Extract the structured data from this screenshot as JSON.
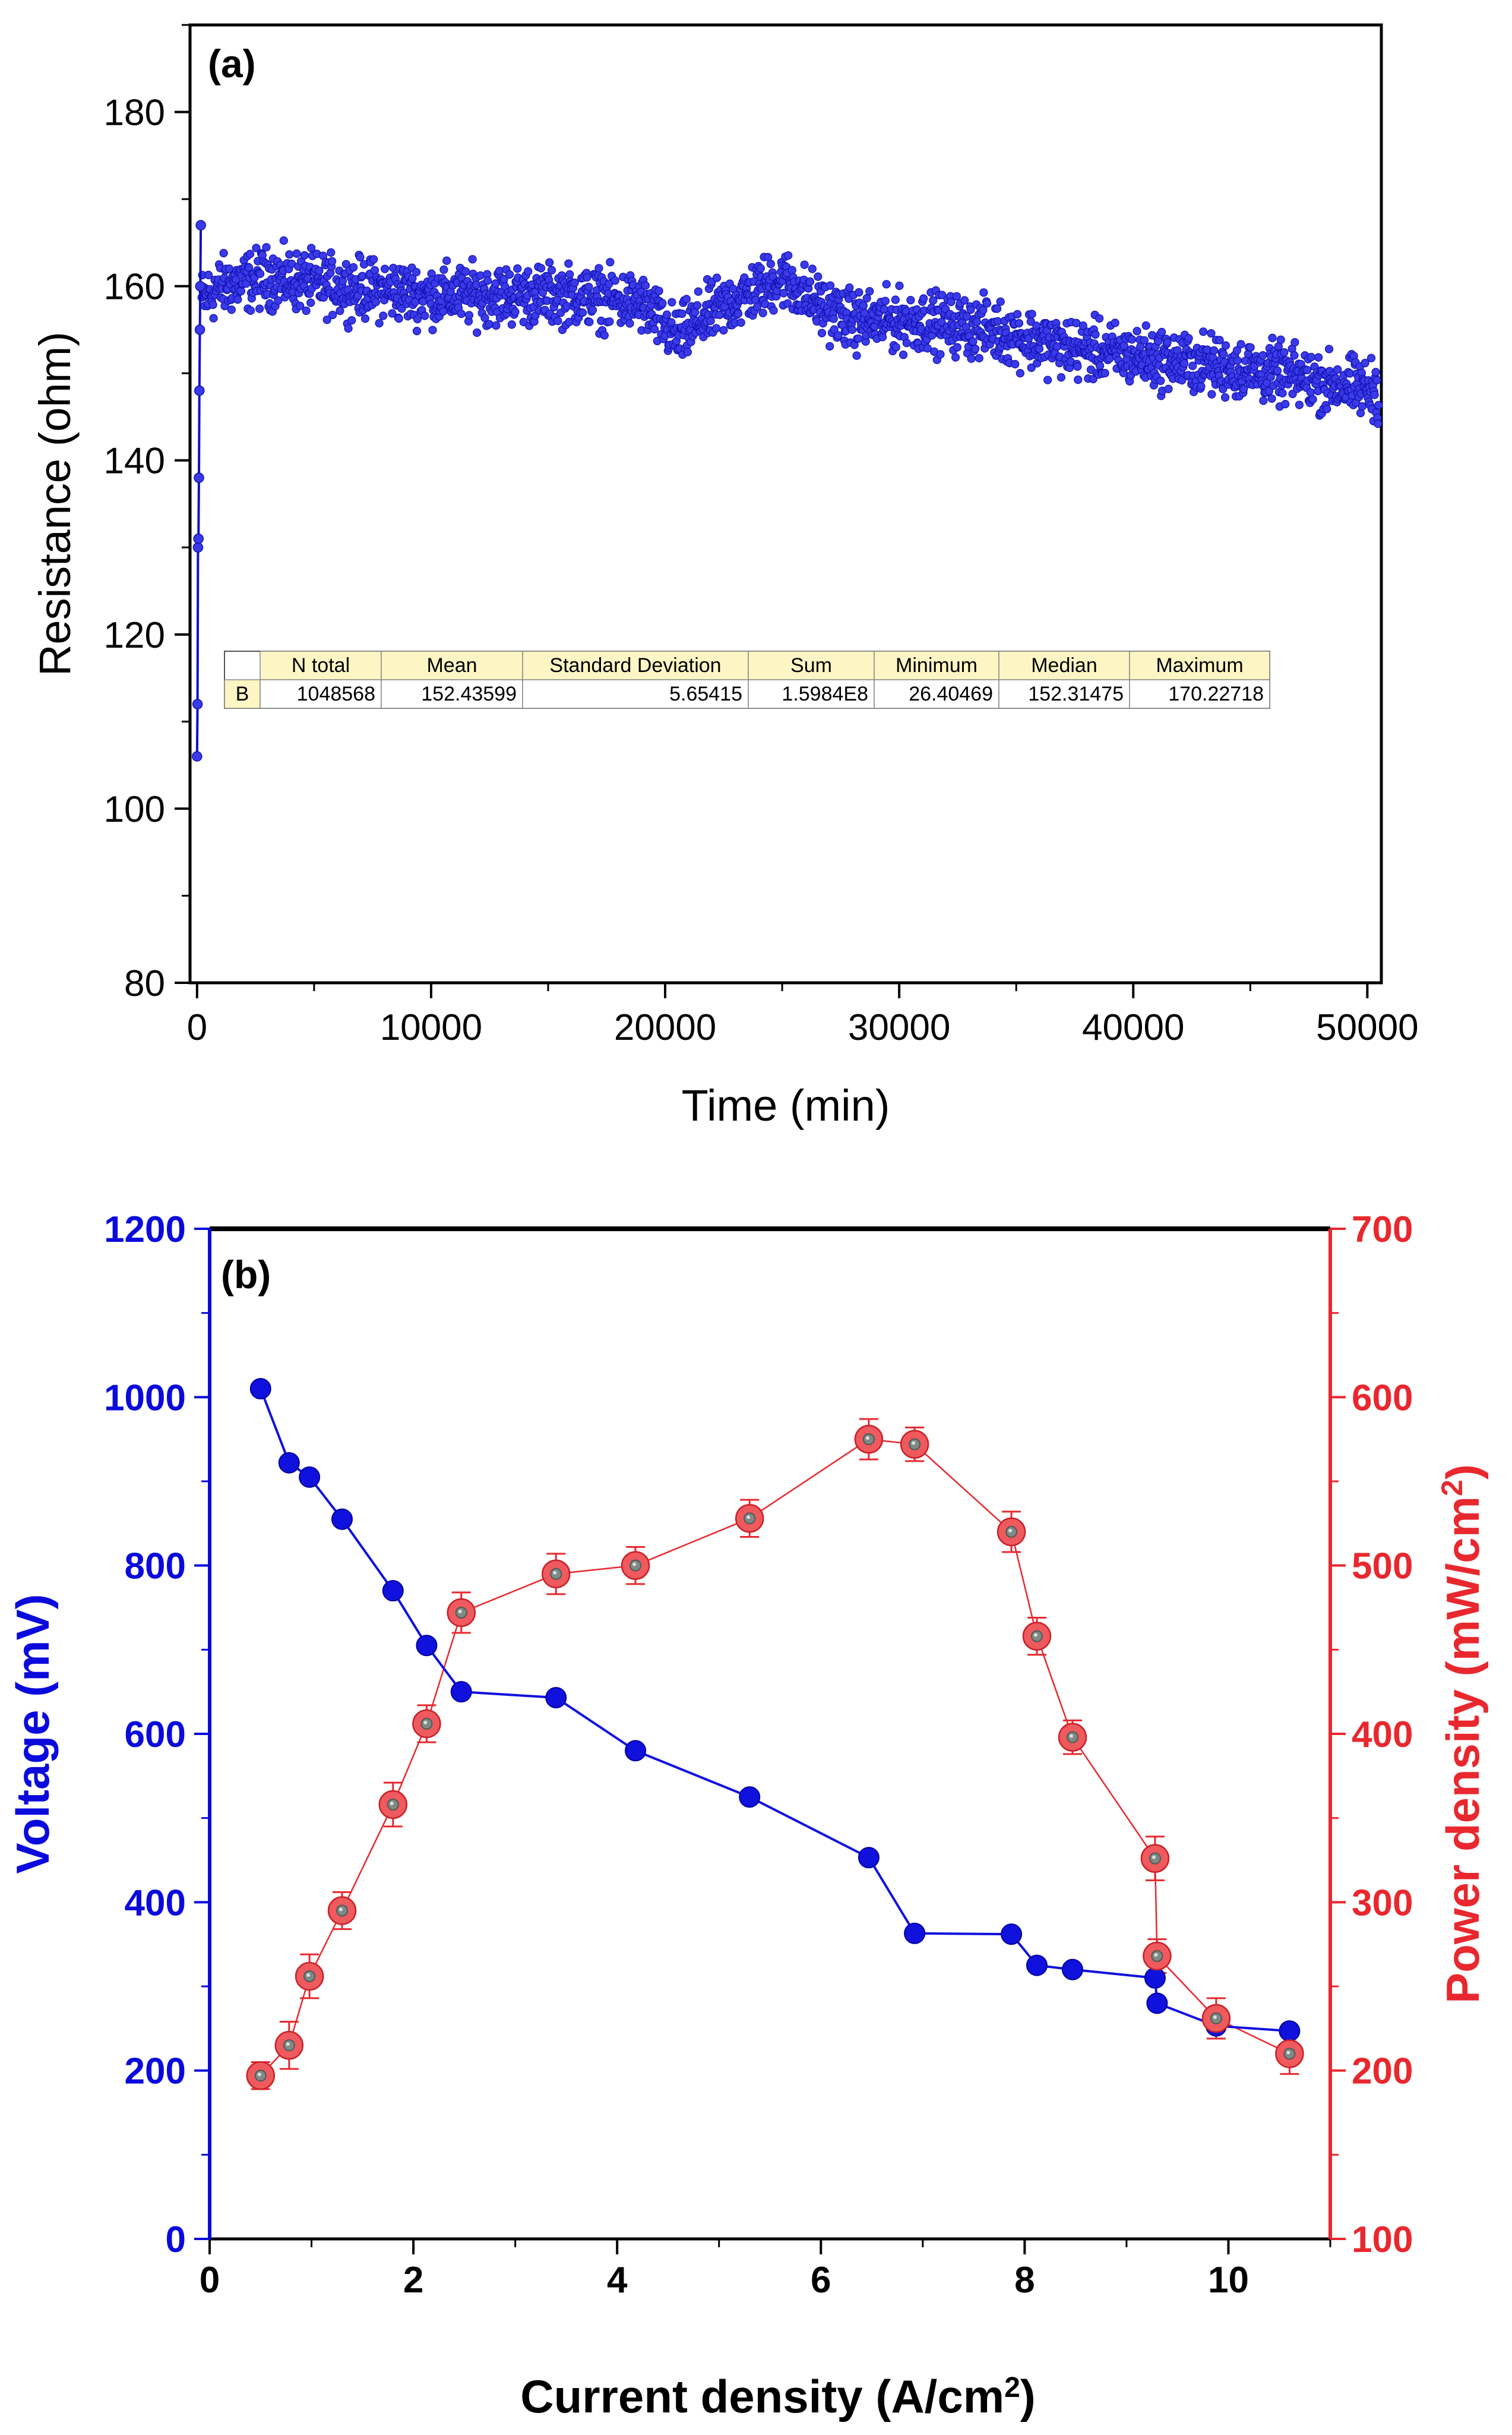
{
  "chart_data": [
    {
      "panel_label": "(a)",
      "type": "scatter",
      "xlabel": "Time (min)",
      "ylabel": "Resistance (ohm)",
      "xlim": [
        -300,
        50600
      ],
      "ylim": [
        80,
        190
      ],
      "xticks": [
        0,
        10000,
        20000,
        30000,
        40000,
        50000
      ],
      "yticks": [
        80,
        100,
        120,
        140,
        160,
        180
      ],
      "marker_color": "#1f1fdc",
      "trend": {
        "description_points_x": [
          0,
          1000,
          3000,
          6000,
          10000,
          13000,
          16000,
          19000,
          20500,
          22000,
          25000,
          26500,
          28000,
          31000,
          34000,
          37000,
          40000,
          43000,
          46000,
          48000,
          50500
        ],
        "description_points_y": [
          158,
          160,
          161,
          160,
          159,
          159,
          159,
          158,
          154,
          157,
          161,
          158,
          156,
          156,
          155,
          153,
          152,
          151,
          150,
          149,
          148
        ],
        "noise_amplitude": 5
      },
      "initial_points": {
        "x": [
          0,
          20,
          40,
          60,
          80,
          100,
          120,
          140,
          160
        ],
        "y": [
          106,
          112,
          130,
          131,
          138,
          148,
          155,
          160,
          167
        ]
      },
      "stats_table": {
        "headers": [
          "",
          "N total",
          "Mean",
          "Standard Deviation",
          "Sum",
          "Minimum",
          "Median",
          "Maximum"
        ],
        "row": [
          "B",
          "1048568",
          "152.43599",
          "5.65415",
          "1.5984E8",
          "26.40469",
          "152.31475",
          "170.22718"
        ]
      }
    },
    {
      "panel_label": "(b)",
      "type": "line",
      "xlabel_prefix": "Current density (A/cm",
      "xlabel_sup": "2",
      "xlabel_suffix": ")",
      "xlim": [
        0,
        11
      ],
      "xticks": [
        0,
        2,
        4,
        6,
        8,
        10
      ],
      "ylabel_left": "Voltage (mV)",
      "ylim_left": [
        0,
        1200
      ],
      "yticks_left": [
        0,
        200,
        400,
        600,
        800,
        1000,
        1200
      ],
      "ylabel_right_prefix": "Power density (mW/cm",
      "ylabel_right_sup": "2",
      "ylabel_right_suffix": ")",
      "ylim_right": [
        100,
        700
      ],
      "yticks_right": [
        100,
        200,
        300,
        400,
        500,
        600,
        700
      ],
      "left_color": "#0a0adc",
      "right_color": "#e8282e",
      "series": [
        {
          "axis": "left",
          "color": "#1111dd",
          "x": [
            0.5,
            0.78,
            0.98,
            1.3,
            1.8,
            2.13,
            2.47,
            3.4,
            4.18,
            5.3,
            6.47,
            6.92,
            7.87,
            8.12,
            8.47,
            9.28,
            9.3,
            9.88,
            10.6
          ],
          "y": [
            1010,
            922,
            905,
            855,
            770,
            705,
            650,
            643,
            580,
            525,
            453,
            363,
            362,
            325,
            320,
            310,
            280,
            253,
            247
          ]
        },
        {
          "axis": "right",
          "color": "#e8282e",
          "x": [
            0.5,
            0.78,
            0.98,
            1.3,
            1.8,
            2.13,
            2.47,
            3.4,
            4.18,
            5.3,
            6.47,
            6.92,
            7.87,
            8.12,
            8.47,
            9.28,
            9.3,
            9.88,
            10.6
          ],
          "y": [
            197,
            215,
            256,
            295,
            358,
            406,
            472,
            495,
            500,
            528,
            575,
            572,
            520,
            458,
            398,
            326,
            268,
            231,
            210
          ],
          "error": [
            8,
            14,
            13,
            11,
            13,
            11,
            12,
            12,
            11,
            11,
            12,
            10,
            12,
            11,
            10,
            13,
            10,
            12,
            12
          ]
        }
      ]
    }
  ]
}
